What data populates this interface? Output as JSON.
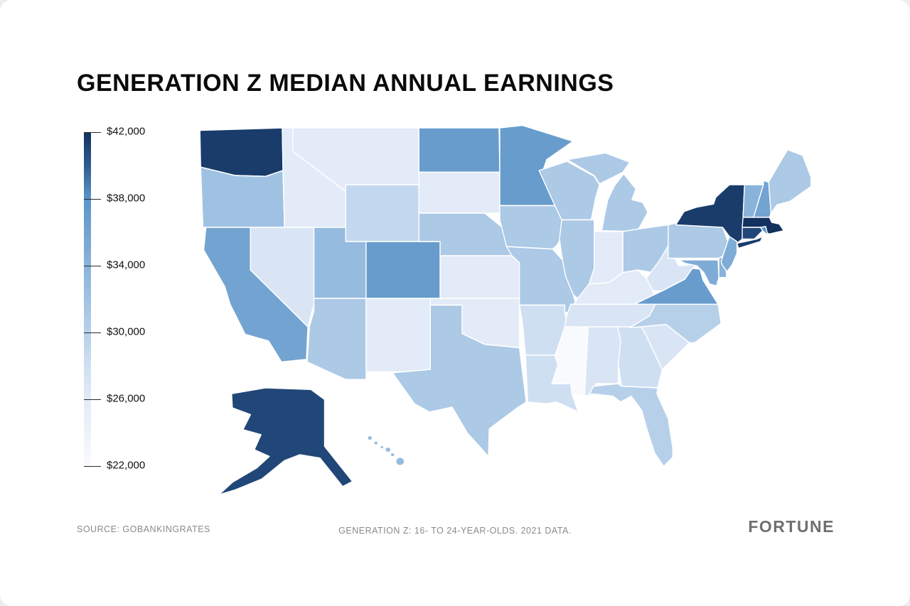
{
  "title": "GENERATION Z MEDIAN ANNUAL EARNINGS",
  "legend": {
    "ticks": [
      "$42,000",
      "$38,000",
      "$34,000",
      "$30,000",
      "$26,000",
      "$22,000"
    ]
  },
  "footer": {
    "source": "SOURCE: GOBANKINGRATES",
    "note": "GENERATION Z: 16- TO 24-YEAR-OLDS. 2021 DATA.",
    "brand": "FORTUNE"
  },
  "chart_data": {
    "type": "choropleth",
    "title": "Generation Z Median Annual Earnings",
    "unit": "USD per year",
    "legend_ticks": [
      42000,
      38000,
      34000,
      30000,
      26000,
      22000
    ],
    "scale": {
      "min": 22000,
      "max": 42000,
      "stops": [
        {
          "value": 22000,
          "color": "#f9fafd"
        },
        {
          "value": 24000,
          "color": "#eef3fa"
        },
        {
          "value": 26000,
          "color": "#e2ebf7"
        },
        {
          "value": 28000,
          "color": "#cfdff2"
        },
        {
          "value": 30000,
          "color": "#b7d0ea"
        },
        {
          "value": 32000,
          "color": "#a0c2e2"
        },
        {
          "value": 34000,
          "color": "#8ab3da"
        },
        {
          "value": 36000,
          "color": "#73a4d1"
        },
        {
          "value": 38000,
          "color": "#5b94c9"
        },
        {
          "value": 40000,
          "color": "#2e5c90"
        },
        {
          "value": 42000,
          "color": "#12315e"
        }
      ]
    },
    "states": [
      {
        "code": "AL",
        "name": "Alabama",
        "value": 27000
      },
      {
        "code": "AK",
        "name": "Alaska",
        "value": 41000
      },
      {
        "code": "AZ",
        "name": "Arizona",
        "value": 31000
      },
      {
        "code": "AR",
        "name": "Arkansas",
        "value": 28000
      },
      {
        "code": "CA",
        "name": "California",
        "value": 36000
      },
      {
        "code": "CO",
        "name": "Colorado",
        "value": 37000
      },
      {
        "code": "CT",
        "name": "Connecticut",
        "value": 41000
      },
      {
        "code": "DE",
        "name": "Delaware",
        "value": 34000
      },
      {
        "code": "FL",
        "name": "Florida",
        "value": 30000
      },
      {
        "code": "GA",
        "name": "Georgia",
        "value": 28000
      },
      {
        "code": "HI",
        "name": "Hawaii",
        "value": 33000
      },
      {
        "code": "ID",
        "name": "Idaho",
        "value": 26000
      },
      {
        "code": "IL",
        "name": "Illinois",
        "value": 31000
      },
      {
        "code": "IN",
        "name": "Indiana",
        "value": 26000
      },
      {
        "code": "IA",
        "name": "Iowa",
        "value": 31000
      },
      {
        "code": "KS",
        "name": "Kansas",
        "value": 26000
      },
      {
        "code": "KY",
        "name": "Kentucky",
        "value": 26000
      },
      {
        "code": "LA",
        "name": "Louisiana",
        "value": 28000
      },
      {
        "code": "ME",
        "name": "Maine",
        "value": 31000
      },
      {
        "code": "MD",
        "name": "Maryland",
        "value": 35000
      },
      {
        "code": "MA",
        "name": "Massachusetts",
        "value": 42000
      },
      {
        "code": "MI",
        "name": "Michigan",
        "value": 31000
      },
      {
        "code": "MN",
        "name": "Minnesota",
        "value": 37000
      },
      {
        "code": "MS",
        "name": "Mississippi",
        "value": 22000
      },
      {
        "code": "MO",
        "name": "Missouri",
        "value": 31000
      },
      {
        "code": "MT",
        "name": "Montana",
        "value": 26000
      },
      {
        "code": "NE",
        "name": "Nebraska",
        "value": 31000
      },
      {
        "code": "NV",
        "name": "Nevada",
        "value": 27000
      },
      {
        "code": "NH",
        "name": "New Hampshire",
        "value": 36000
      },
      {
        "code": "NJ",
        "name": "New Jersey",
        "value": 35000
      },
      {
        "code": "NM",
        "name": "New Mexico",
        "value": 26000
      },
      {
        "code": "NY",
        "name": "New York",
        "value": 41500
      },
      {
        "code": "NC",
        "name": "North Carolina",
        "value": 30000
      },
      {
        "code": "ND",
        "name": "North Dakota",
        "value": 37000
      },
      {
        "code": "OH",
        "name": "Ohio",
        "value": 31000
      },
      {
        "code": "OK",
        "name": "Oklahoma",
        "value": 26000
      },
      {
        "code": "OR",
        "name": "Oregon",
        "value": 32000
      },
      {
        "code": "PA",
        "name": "Pennsylvania",
        "value": 31000
      },
      {
        "code": "RI",
        "name": "Rhode Island",
        "value": 38000
      },
      {
        "code": "SC",
        "name": "South Carolina",
        "value": 27000
      },
      {
        "code": "SD",
        "name": "South Dakota",
        "value": 26000
      },
      {
        "code": "TN",
        "name": "Tennessee",
        "value": 27000
      },
      {
        "code": "TX",
        "name": "Texas",
        "value": 31000
      },
      {
        "code": "UT",
        "name": "Utah",
        "value": 33000
      },
      {
        "code": "VT",
        "name": "Vermont",
        "value": 34000
      },
      {
        "code": "VA",
        "name": "Virginia",
        "value": 37000
      },
      {
        "code": "WA",
        "name": "Washington",
        "value": 41500
      },
      {
        "code": "WV",
        "name": "West Virginia",
        "value": 27000
      },
      {
        "code": "WI",
        "name": "Wisconsin",
        "value": 31000
      },
      {
        "code": "WY",
        "name": "Wyoming",
        "value": 29000
      }
    ]
  }
}
